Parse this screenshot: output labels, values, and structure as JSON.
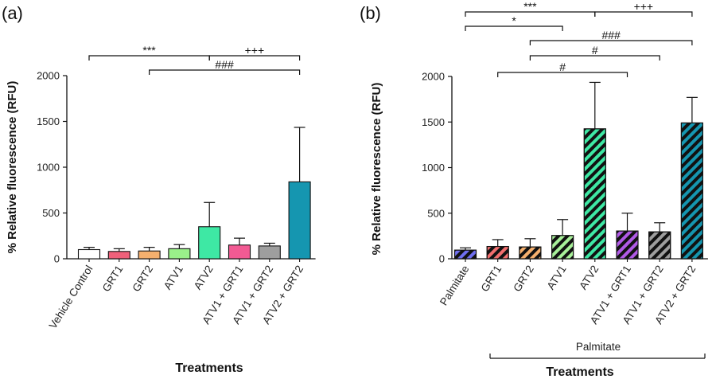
{
  "chart_data": [
    {
      "panel_label": "(a)",
      "type": "bar",
      "ylabel": "% Relative fluorescence (RFU)",
      "xlabel": "Treatments",
      "ylim": [
        0,
        2000
      ],
      "yticks": [
        "0",
        "500",
        "1000",
        "1500",
        "2000"
      ],
      "categories": [
        "Vehicle Control",
        "GRT1",
        "GRT2",
        "ATV1",
        "ATV2",
        "ATV1 + GRT1",
        "ATV1 + GRT2",
        "ATV2 + GRT2"
      ],
      "values": [
        100,
        80,
        85,
        110,
        350,
        150,
        140,
        840
      ],
      "errors": [
        25,
        30,
        40,
        45,
        265,
        75,
        30,
        595
      ],
      "colors": [
        "#ffffff",
        "#f0607a",
        "#f5b06e",
        "#9af08a",
        "#3ee8a4",
        "#f25a93",
        "#9e9e9e",
        "#1596b0"
      ],
      "hatched": false,
      "significance": [
        {
          "from": 0,
          "to": 4,
          "label": "***"
        },
        {
          "from": 4,
          "to": 7,
          "label": "+++"
        },
        {
          "from": 2,
          "to": 7,
          "label": "###"
        }
      ]
    },
    {
      "panel_label": "(b)",
      "type": "bar",
      "ylabel": "% Relative fluorescence (RFU)",
      "xlabel": "Treatments",
      "ylim": [
        0,
        2000
      ],
      "yticks": [
        "0",
        "500",
        "1000",
        "1500",
        "2000"
      ],
      "categories": [
        "Palmitate",
        "GRT1",
        "GRT2",
        "ATV1",
        "ATV2",
        "ATV1 + GRT1",
        "ATV1 + GRT2",
        "ATV2 + GRT2"
      ],
      "values": [
        95,
        135,
        130,
        255,
        1425,
        305,
        295,
        1490
      ],
      "errors": [
        25,
        75,
        90,
        175,
        510,
        195,
        100,
        280
      ],
      "colors": [
        "#6f6ff0",
        "#f26e6e",
        "#f5b06e",
        "#a8f09a",
        "#3ee8a4",
        "#b05ae6",
        "#9e9e9e",
        "#1596b0"
      ],
      "hatched": true,
      "group_label": "Palmitate",
      "significance": [
        {
          "from": 0,
          "to": 4,
          "label": "***"
        },
        {
          "from": 4,
          "to": 7,
          "label": "+++"
        },
        {
          "from": 0,
          "to": 3,
          "label": "*"
        },
        {
          "from": 2,
          "to": 7,
          "label": "###"
        },
        {
          "from": 2,
          "to": 6,
          "label": "#"
        },
        {
          "from": 1,
          "to": 5,
          "label": "#"
        }
      ]
    }
  ]
}
